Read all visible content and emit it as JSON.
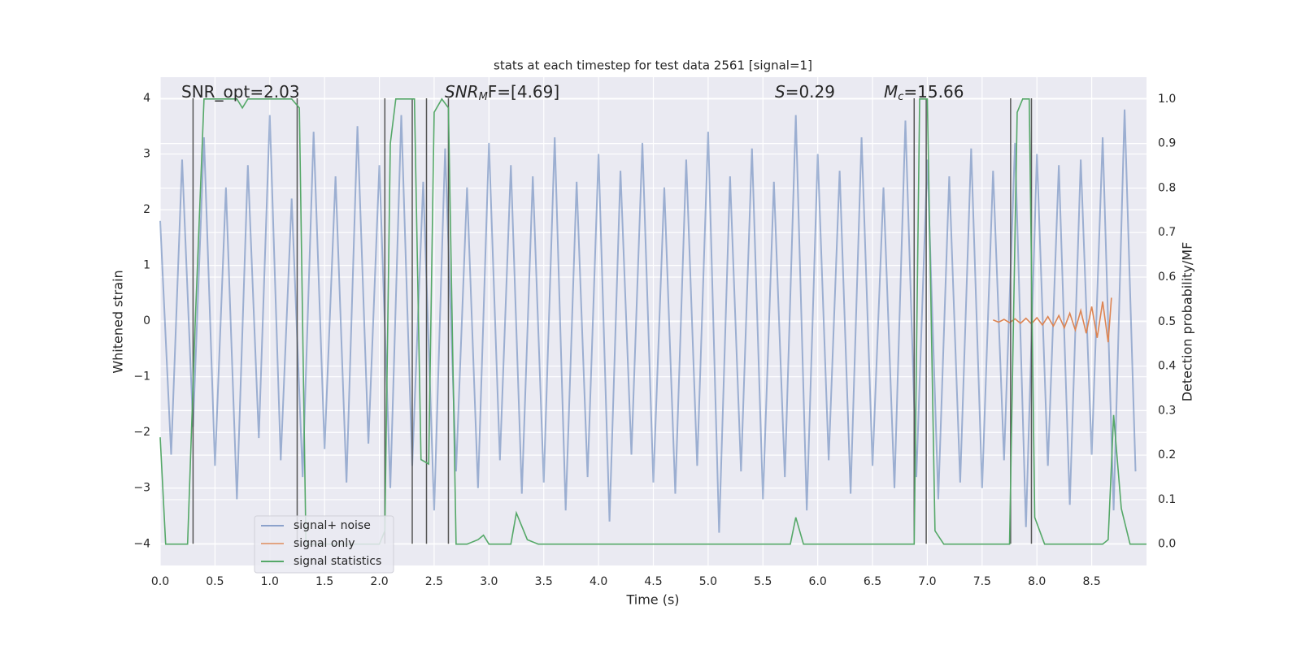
{
  "chart_data": {
    "type": "line",
    "title": "stats at each timestep for test data 2561 [signal=1]",
    "xlabel": "Time (s)",
    "ylabel": "Whitened strain",
    "y2label": "Detection probability/MF",
    "xlim": [
      0,
      9.0
    ],
    "ylim": [
      -4.39,
      4.38
    ],
    "y2lim": [
      -0.048,
      1.049
    ],
    "grid": true,
    "legend": "lower left",
    "xticks": [
      {
        "value": 0,
        "label": "0.0"
      },
      {
        "value": 0.5,
        "label": "0.5"
      },
      {
        "value": 1,
        "label": "1.0"
      },
      {
        "value": 1.5,
        "label": "1.5"
      },
      {
        "value": 2,
        "label": "2.0"
      },
      {
        "value": 2.5,
        "label": "2.5"
      },
      {
        "value": 3,
        "label": "3.0"
      },
      {
        "value": 3.5,
        "label": "3.5"
      },
      {
        "value": 4,
        "label": "4.0"
      },
      {
        "value": 4.5,
        "label": "4.5"
      },
      {
        "value": 5,
        "label": "5.0"
      },
      {
        "value": 5.5,
        "label": "5.5"
      },
      {
        "value": 6,
        "label": "6.0"
      },
      {
        "value": 6.5,
        "label": "6.5"
      },
      {
        "value": 7,
        "label": "7.0"
      },
      {
        "value": 7.5,
        "label": "7.5"
      },
      {
        "value": 8,
        "label": "8.0"
      },
      {
        "value": 8.5,
        "label": "8.5"
      }
    ],
    "yticks": [
      {
        "value": -4,
        "label": "−4"
      },
      {
        "value": -3,
        "label": "−3"
      },
      {
        "value": -2,
        "label": "−2"
      },
      {
        "value": -1,
        "label": "−1"
      },
      0,
      1,
      2,
      3,
      4
    ],
    "y2ticks": [
      {
        "value": 0,
        "label": "0.0"
      },
      {
        "value": 0.1,
        "label": "0.1"
      },
      {
        "value": 0.2,
        "label": "0.2"
      },
      {
        "value": 0.3,
        "label": "0.3"
      },
      {
        "value": 0.4,
        "label": "0.4"
      },
      {
        "value": 0.5,
        "label": "0.5"
      },
      {
        "value": 0.6,
        "label": "0.6"
      },
      {
        "value": 0.7,
        "label": "0.7"
      },
      {
        "value": 0.8,
        "label": "0.8"
      },
      {
        "value": 0.9,
        "label": "0.9"
      },
      {
        "value": 1,
        "label": "1.0"
      }
    ],
    "annotations": [
      {
        "main": "SNR_opt=2.03"
      },
      {
        "main": "SNR",
        "sub": "M",
        "rest": "F=[4.69]"
      },
      {
        "main": "S",
        "rest": "=0.29"
      },
      {
        "main": "M",
        "sub": "c",
        "rest": "=15.66"
      }
    ],
    "vlines": [
      0.3,
      1.25,
      2.05,
      2.3,
      2.43,
      2.63,
      6.88,
      6.99,
      7.76,
      7.95
    ],
    "series": [
      {
        "name": "signal+ noise",
        "color": "#4c72b0",
        "x": [
          0,
          0.1,
          0.2,
          0.3,
          0.4,
          0.5,
          0.6,
          0.7,
          0.8,
          0.9,
          1.0,
          1.1,
          1.2,
          1.3,
          1.4,
          1.5,
          1.6,
          1.7,
          1.8,
          1.9,
          2.0,
          2.1,
          2.2,
          2.3,
          2.4,
          2.5,
          2.6,
          2.7,
          2.8,
          2.9,
          3.0,
          3.1,
          3.2,
          3.3,
          3.4,
          3.5,
          3.6,
          3.7,
          3.8,
          3.9,
          4.0,
          4.1,
          4.2,
          4.3,
          4.4,
          4.5,
          4.6,
          4.7,
          4.8,
          4.9,
          5.0,
          5.1,
          5.2,
          5.3,
          5.4,
          5.5,
          5.6,
          5.7,
          5.8,
          5.9,
          6.0,
          6.1,
          6.2,
          6.3,
          6.4,
          6.5,
          6.6,
          6.7,
          6.8,
          6.9,
          7.0,
          7.1,
          7.2,
          7.3,
          7.4,
          7.5,
          7.6,
          7.7,
          7.8,
          7.9,
          8.0,
          8.1,
          8.2,
          8.3,
          8.4,
          8.5,
          8.6,
          8.7,
          8.8,
          8.9
        ],
        "values": [
          1.8,
          -2.4,
          2.9,
          -1.9,
          3.3,
          -2.6,
          2.4,
          -3.2,
          2.8,
          -2.1,
          3.7,
          -2.5,
          2.2,
          -2.8,
          3.4,
          -2.3,
          2.6,
          -2.9,
          3.5,
          -2.2,
          2.8,
          -3.0,
          3.7,
          -2.6,
          2.5,
          -3.4,
          3.1,
          -2.7,
          2.4,
          -3.0,
          3.2,
          -2.5,
          2.8,
          -3.1,
          2.6,
          -2.9,
          3.3,
          -3.4,
          2.5,
          -2.8,
          3.0,
          -3.6,
          2.7,
          -2.4,
          3.2,
          -2.9,
          2.4,
          -3.1,
          2.9,
          -2.6,
          3.4,
          -3.8,
          2.6,
          -2.7,
          3.1,
          -3.2,
          2.5,
          -2.8,
          3.7,
          -3.4,
          3.0,
          -2.5,
          2.7,
          -3.1,
          3.3,
          -2.6,
          2.4,
          -3.0,
          3.6,
          -2.8,
          2.9,
          -3.2,
          2.6,
          -2.9,
          3.1,
          -3.0,
          2.7,
          -2.5,
          3.2,
          -3.7,
          3.0,
          -2.6,
          2.8,
          -3.3,
          2.9,
          -2.4,
          3.3,
          -3.4,
          3.8,
          -2.7
        ]
      },
      {
        "name": "signal only",
        "color": "#dd8452",
        "x": [
          7.6,
          7.65,
          7.7,
          7.75,
          7.8,
          7.85,
          7.9,
          7.95,
          8.0,
          8.05,
          8.1,
          8.15,
          8.2,
          8.25,
          8.3,
          8.35,
          8.4,
          8.45,
          8.5,
          8.55,
          8.6,
          8.65,
          8.68
        ],
        "values": [
          0.02,
          -0.02,
          0.03,
          -0.03,
          0.04,
          -0.04,
          0.05,
          -0.05,
          0.06,
          -0.07,
          0.08,
          -0.09,
          0.1,
          -0.12,
          0.14,
          -0.16,
          0.19,
          -0.22,
          0.26,
          -0.3,
          0.35,
          -0.38,
          0.42
        ]
      },
      {
        "name": "signal statistics",
        "color": "#55a868",
        "axis": "y2",
        "x": [
          0.0,
          0.05,
          0.25,
          0.32,
          0.4,
          0.7,
          0.75,
          0.8,
          1.2,
          1.27,
          1.33,
          2.0,
          2.05,
          2.1,
          2.15,
          2.32,
          2.38,
          2.45,
          2.5,
          2.57,
          2.63,
          2.7,
          2.8,
          2.9,
          2.95,
          3.0,
          3.2,
          3.25,
          3.35,
          3.45,
          5.75,
          5.8,
          5.87,
          6.88,
          6.93,
          7.0,
          7.07,
          7.15,
          7.75,
          7.82,
          7.87,
          7.93,
          7.98,
          8.07,
          8.6,
          8.65,
          8.7,
          8.77,
          8.85,
          9.0
        ],
        "values": [
          0.24,
          0.0,
          0.0,
          0.5,
          1.0,
          1.0,
          0.98,
          1.0,
          1.0,
          0.98,
          0.0,
          0.0,
          0.03,
          0.9,
          1.0,
          1.0,
          0.19,
          0.18,
          0.97,
          1.0,
          0.98,
          0.0,
          0.0,
          0.01,
          0.02,
          0.0,
          0.0,
          0.07,
          0.01,
          0.0,
          0.0,
          0.06,
          0.0,
          0.0,
          1.0,
          1.0,
          0.03,
          0.0,
          0.0,
          0.97,
          1.0,
          1.0,
          0.06,
          0.0,
          0.0,
          0.01,
          0.29,
          0.08,
          0.0,
          0.0
        ]
      }
    ]
  }
}
